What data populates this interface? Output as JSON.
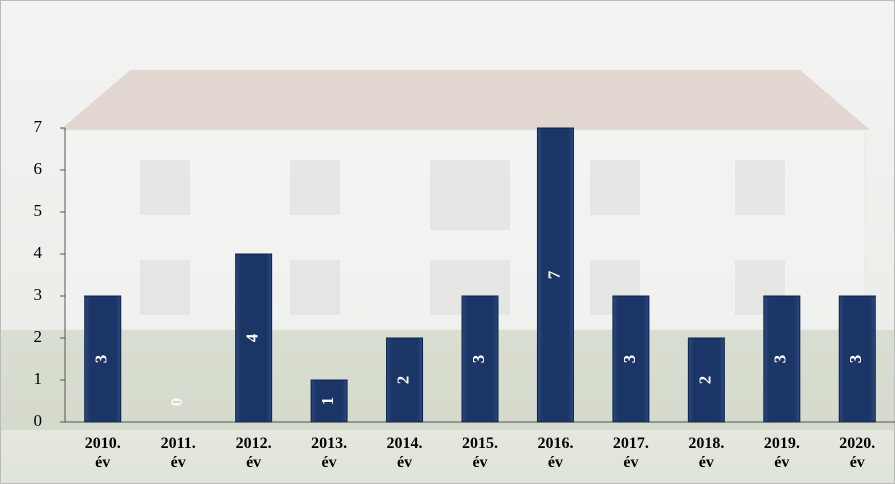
{
  "chart_data": {
    "type": "bar",
    "categories": [
      "2010. év",
      "2011. év",
      "2012. év",
      "2013. év",
      "2014. év",
      "2015. év",
      "2016. év",
      "2017. év",
      "2018. év",
      "2019. év",
      "2020. év"
    ],
    "values": [
      3,
      0,
      4,
      1,
      2,
      3,
      7,
      3,
      2,
      3,
      3
    ],
    "color": "#1b3566",
    "ylim": [
      0,
      7
    ],
    "yticks": [
      0,
      1,
      2,
      3,
      4,
      5,
      6,
      7
    ],
    "grid": false
  }
}
